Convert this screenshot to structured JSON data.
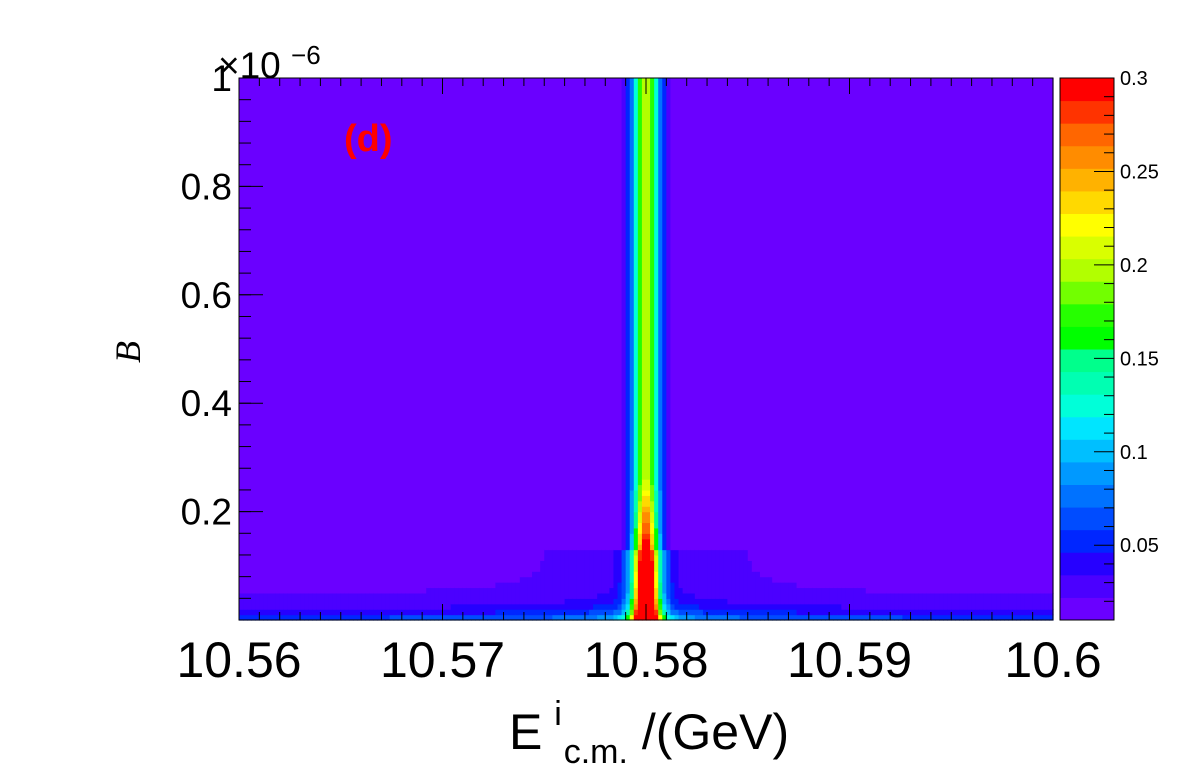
{
  "chart_data": {
    "type": "heatmap",
    "panel_label": "(d)",
    "panel_label_color": "#ff0000",
    "x_axis": {
      "label_main": "E",
      "label_sup": "i",
      "label_sub": "c.m.",
      "label_tail": "/(GeV)",
      "range": [
        10.56,
        10.6
      ],
      "ticks": [
        10.56,
        10.57,
        10.58,
        10.59,
        10.6
      ],
      "tick_labels": [
        "10.56",
        "10.57",
        "10.58",
        "10.59",
        "10.6"
      ]
    },
    "y_axis": {
      "label": "B",
      "range": [
        0,
        1e-06
      ],
      "ticks": [
        2e-07,
        4e-07,
        6e-07,
        8e-07,
        1e-06
      ],
      "tick_labels": [
        "0.2",
        "0.4",
        "0.6",
        "0.8",
        "1"
      ],
      "exponent_label": "×10",
      "exponent": "−6"
    },
    "z_axis": {
      "range": [
        0.01,
        0.3
      ],
      "ticks": [
        0.05,
        0.1,
        0.15,
        0.2,
        0.25,
        0.3
      ],
      "tick_labels": [
        "0.05",
        "0.1",
        "0.15",
        "0.2",
        "0.25",
        "0.3"
      ]
    },
    "peak_x": 10.58,
    "background_value": 0.012,
    "palette": [
      "#6a00ff",
      "#4b00ff",
      "#2600ff",
      "#0026ff",
      "#004cff",
      "#0072ff",
      "#0099ff",
      "#00bfff",
      "#00e5ff",
      "#00ffd9",
      "#00ffb2",
      "#00ff8c",
      "#00ff00",
      "#26ff00",
      "#72ff00",
      "#b2ff00",
      "#d9ff00",
      "#ffff00",
      "#ffd900",
      "#ffb200",
      "#ff8c00",
      "#ff6600",
      "#ff3300",
      "#ff0000"
    ],
    "grid": false
  }
}
